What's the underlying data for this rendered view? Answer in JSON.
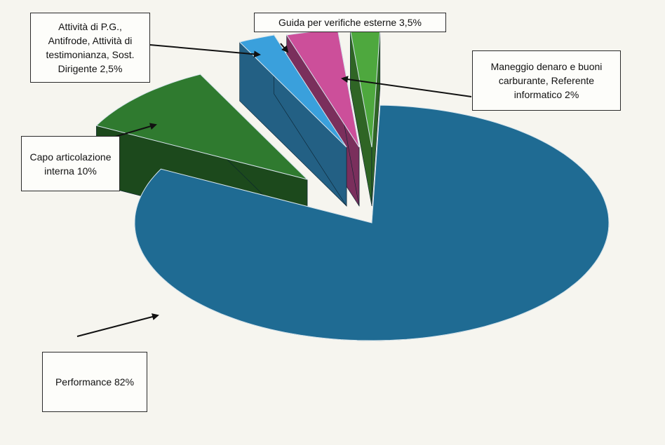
{
  "chart_data": {
    "type": "pie",
    "style": "3d-exploded",
    "slices": [
      {
        "label": "Performance 82%",
        "value": 82,
        "color": "#1f6b93"
      },
      {
        "label": "Capo articolazione interna 10%",
        "value": 10,
        "color": "#2f7a2f"
      },
      {
        "label": "Attività di P.G., Antifrode, Attività di testimonianza, Sost. Dirigente 2,5%",
        "value": 2.5,
        "color": "#3aa0dc"
      },
      {
        "label": "Guida per verifiche esterne 3,5%",
        "value": 3.5,
        "color": "#cc4f9a"
      },
      {
        "label": "Maneggio denaro e buoni carburante, Referente informatico 2%",
        "value": 2,
        "color": "#4ea83e"
      }
    ]
  },
  "callouts": {
    "attivita": "Attività di P.G.,\nAntifrode, Attività di\ntestimonianza, Sost.\nDirigente 2,5%",
    "guida": "Guida per verifiche esterne 3,5%",
    "maneggio": "Maneggio denaro e buoni\ncarburante, Referente\ninformatico 2%",
    "capo": "Capo articolazione\ninterna 10%",
    "performance": "Performance 82%"
  }
}
